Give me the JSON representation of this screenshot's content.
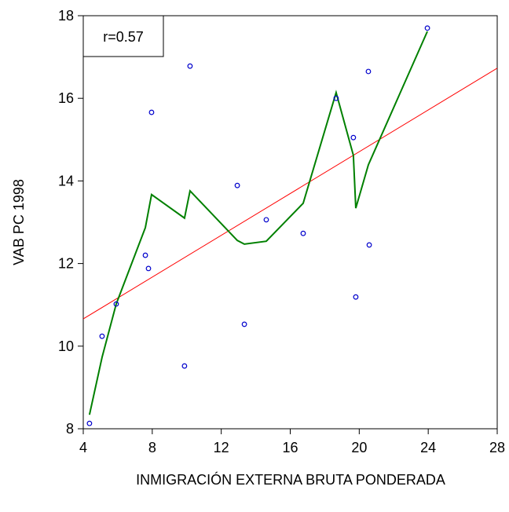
{
  "chart_data": {
    "type": "scatter",
    "x_label": "INMIGRACIÓN EXTERNA BRUTA PONDERADA",
    "y_label": "VAB  PC 1998",
    "annotation": "r=0.57",
    "x": [
      4.36,
      5.09,
      5.91,
      7.6,
      7.78,
      7.96,
      9.87,
      10.19,
      12.93,
      13.34,
      14.61,
      16.75,
      18.66,
      19.66,
      19.8,
      20.53,
      20.58,
      23.95
    ],
    "y": [
      8.13,
      10.24,
      11.02,
      12.2,
      11.88,
      15.66,
      9.52,
      16.78,
      13.89,
      10.53,
      13.06,
      12.73,
      16.0,
      15.05,
      11.19,
      16.65,
      12.45,
      17.7
    ],
    "color": "#0000cc",
    "lines": [
      {
        "color": "#ff0000",
        "x": [
          4,
          28
        ],
        "y": [
          10.66,
          16.73
        ]
      },
      {
        "color": "#008000",
        "x": [
          4.36,
          5.09,
          5.91,
          7.6,
          7.96,
          9.87,
          10.19,
          12.93,
          13.34,
          14.61,
          16.75,
          18.66,
          19.66,
          19.8,
          20.53,
          23.95
        ],
        "y": [
          8.34,
          9.73,
          11.02,
          12.87,
          13.67,
          13.1,
          13.76,
          12.56,
          12.47,
          12.54,
          13.46,
          16.14,
          14.62,
          13.34,
          14.39,
          17.62
        ]
      }
    ],
    "xlim": [
      4,
      28
    ],
    "ylim": [
      8,
      18
    ],
    "xticks": [
      4,
      8,
      12,
      16,
      20,
      24,
      28
    ],
    "yticks": [
      8,
      10,
      12,
      14,
      16,
      18
    ]
  }
}
